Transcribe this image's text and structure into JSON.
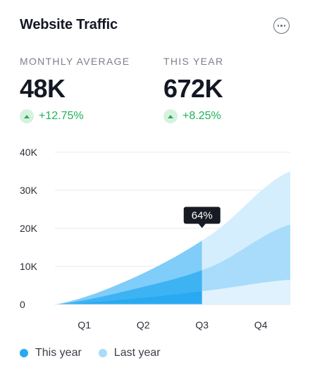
{
  "header": {
    "title": "Website Traffic",
    "menu_icon": "more-horizontal-icon"
  },
  "stats": [
    {
      "label": "MONTHLY AVERAGE",
      "value": "48K",
      "change": "+12.75%",
      "trend_icon": "arrow-up-icon"
    },
    {
      "label": "THIS YEAR",
      "value": "672K",
      "change": "+8.25%",
      "trend_icon": "arrow-up-icon"
    }
  ],
  "colors": {
    "this_year": "#29a9f2",
    "last_year": "#a8dcfa",
    "positive": "#1fb25a",
    "tooltip_bg": "#171a22"
  },
  "chart_data": {
    "type": "area",
    "categories": [
      "Q1",
      "Q2",
      "Q3",
      "Q4"
    ],
    "y_ticks": [
      "0",
      "10K",
      "20K",
      "30K",
      "40K"
    ],
    "ylim": [
      0,
      40000
    ],
    "highlight": {
      "category": "Q3",
      "label": "64%"
    },
    "series": [
      {
        "name": "This year",
        "values": [
          0,
          7000,
          18500,
          35000
        ]
      },
      {
        "name": "Last year",
        "values": [
          0,
          4000,
          10000,
          21000
        ]
      },
      {
        "values": [
          0,
          1500,
          3800,
          6500
        ]
      }
    ],
    "grid": true,
    "legend_position": "bottom-left"
  },
  "legend": [
    {
      "label": "This year"
    },
    {
      "label": "Last year"
    }
  ]
}
